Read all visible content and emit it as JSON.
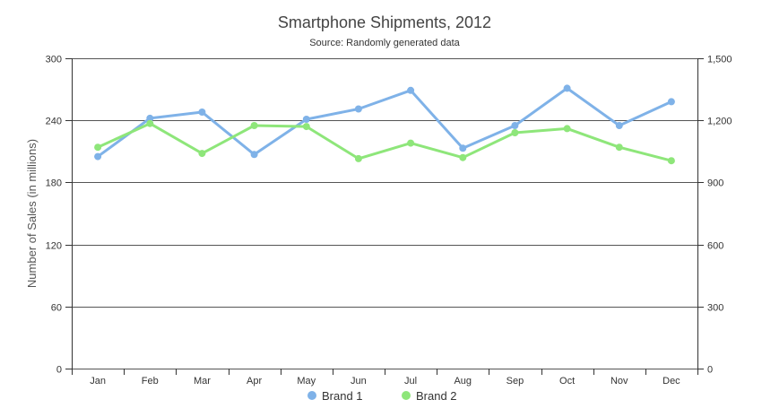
{
  "colors": {
    "brand1": "#7fb2e8",
    "brand2": "#8ee67a",
    "grid": "#555555",
    "axis": "#333333"
  },
  "chart_data": {
    "type": "line",
    "title": "Smartphone Shipments, 2012",
    "subtitle": "Source: Randomly generated data",
    "ylabel": "Number of Sales (in millions)",
    "xlabel": "",
    "categories": [
      "Jan",
      "Feb",
      "Mar",
      "Apr",
      "May",
      "Jun",
      "Jul",
      "Aug",
      "Sep",
      "Oct",
      "Nov",
      "Dec"
    ],
    "y_left": {
      "min": 0,
      "max": 300,
      "ticks": [
        0,
        60,
        120,
        180,
        240,
        300
      ],
      "tick_labels": [
        "0",
        "60",
        "120",
        "180",
        "240",
        "300"
      ]
    },
    "y_right": {
      "min": 0,
      "max": 1500,
      "ticks": [
        0,
        300,
        600,
        900,
        1200,
        1500
      ],
      "tick_labels": [
        "0",
        "300",
        "600",
        "900",
        "1,200",
        "1,500"
      ]
    },
    "grid": true,
    "legend_position": "bottom-center",
    "series": [
      {
        "name": "Brand 1",
        "color": "#7fb2e8",
        "values": [
          205,
          242,
          248,
          207,
          241,
          251,
          269,
          213,
          235,
          271,
          235,
          258
        ]
      },
      {
        "name": "Brand 2",
        "color": "#8ee67a",
        "values": [
          214,
          237,
          208,
          235,
          234,
          203,
          218,
          204,
          228,
          232,
          214,
          201
        ]
      }
    ]
  }
}
